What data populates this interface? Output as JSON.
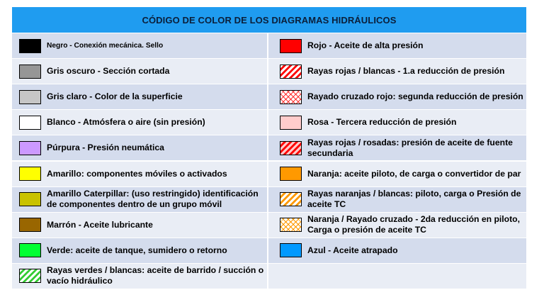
{
  "title": "CÓDIGO DE COLOR DE LOS DIAGRAMAS HIDRÁULICOS",
  "colors": {
    "header_bg": "#1f9cf0",
    "row_odd_bg": "#d4dced",
    "row_even_bg": "#e9edf5"
  },
  "left": [
    {
      "label": "Negro - Conexión mecánica. Sello",
      "swatch": "black"
    },
    {
      "label": "Gris oscuro - Sección cortada",
      "swatch": "darkgray"
    },
    {
      "label": "Gris claro - Color de la superficie",
      "swatch": "lightgray"
    },
    {
      "label": "Blanco - Atmósfera o aire (sin presión)",
      "swatch": "white"
    },
    {
      "label": "Púrpura - Presión neumática",
      "swatch": "purple"
    },
    {
      "label": "Amarillo: componentes móviles o activados",
      "swatch": "yellow"
    },
    {
      "label": "Amarillo Caterpillar: (uso restringido) identificación de componentes dentro de un grupo móvil",
      "swatch": "cat"
    },
    {
      "label": "Marrón - Aceite lubricante",
      "swatch": "brown"
    },
    {
      "label": "Verde: aceite de tanque, sumidero o retorno",
      "swatch": "green"
    },
    {
      "label": "Rayas verdes / blancas: aceite de barrido / succión o vacío hidráulico",
      "swatch": "greenstripe"
    }
  ],
  "right": [
    {
      "label": "Rojo - Aceite de alta presión",
      "swatch": "red"
    },
    {
      "label": "Rayas rojas / blancas - 1.a reducción de presión",
      "swatch": "redstripe"
    },
    {
      "label": "Rayado  cruzado rojo: segunda reducción de presión",
      "swatch": "redcross"
    },
    {
      "label": "Rosa - Tercera reducción de presión",
      "swatch": "pink"
    },
    {
      "label": "Rayas rojas / rosadas: presión de aceite de fuente secundaria",
      "swatch": "redpinkstripe"
    },
    {
      "label": "Naranja: aceite piloto, de carga o convertidor de par",
      "swatch": "orange"
    },
    {
      "label": "Rayas naranjas / blancas: piloto, carga o Presión de aceite TC",
      "swatch": "orangestripe"
    },
    {
      "label": "Naranja / Rayado cruzado - 2da reducción en piloto, Carga o presión de aceite TC",
      "swatch": "orangecross"
    },
    {
      "label": "Azul - Aceite atrapado",
      "swatch": "blue"
    },
    {
      "label": "",
      "swatch": ""
    }
  ]
}
